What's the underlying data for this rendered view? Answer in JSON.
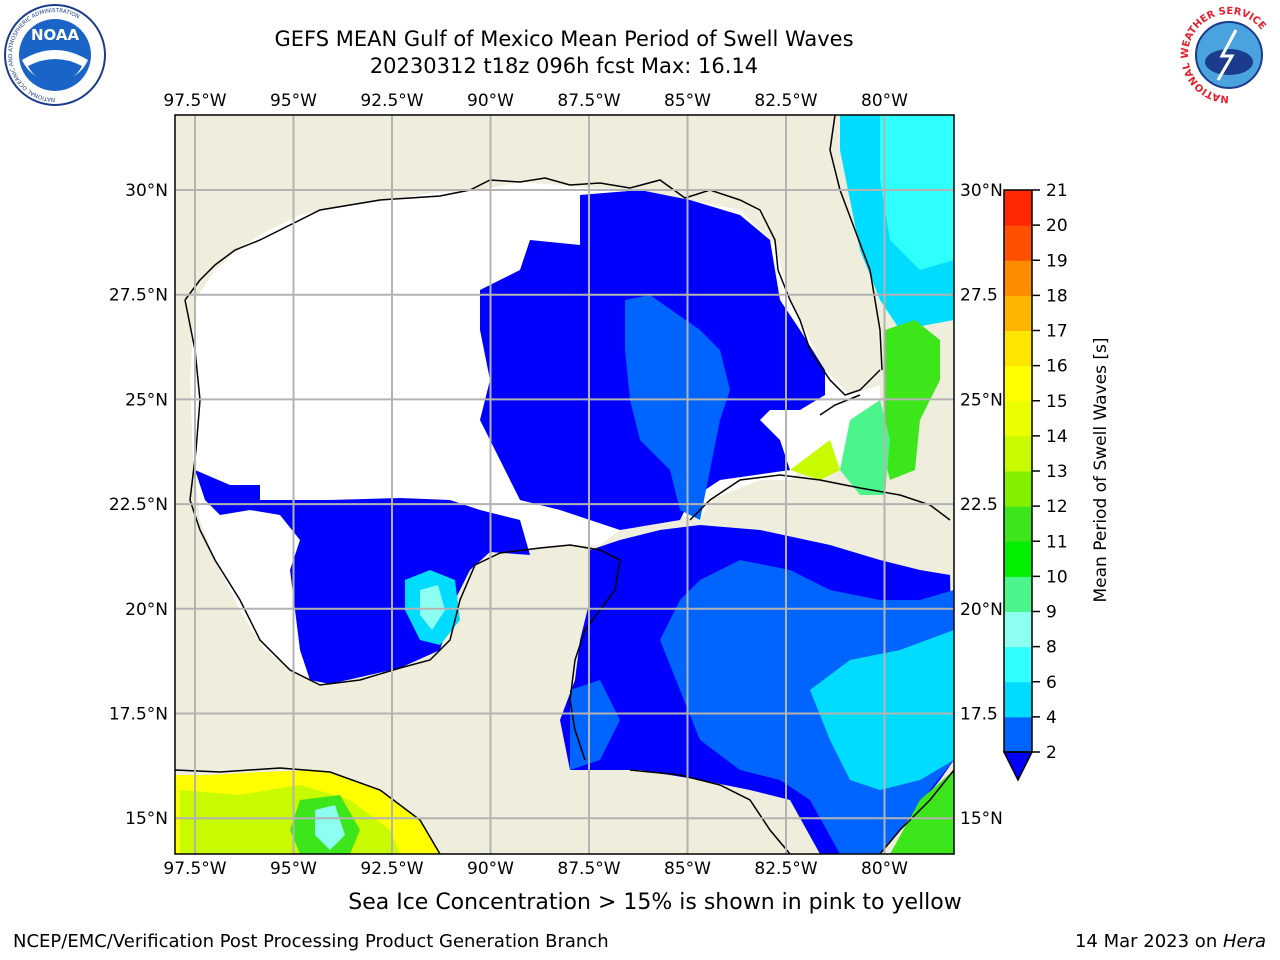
{
  "header": {
    "title_line1": "GEFS MEAN Gulf of Mexico Mean Period of Swell Waves",
    "title_line2": "20230312 t18z 096h fcst   Max: 16.14"
  },
  "map": {
    "lon_labels": [
      "97.5°W",
      "95°W",
      "92.5°W",
      "90°W",
      "87.5°W",
      "85°W",
      "82.5°W",
      "80°W"
    ],
    "lat_labels_left": [
      "30°N",
      "27.5°N",
      "25°N",
      "22.5°N",
      "20°N",
      "17.5°N",
      "15°N"
    ],
    "lat_labels_right": [
      "30°N",
      "27.5",
      "25°N",
      "22.5",
      "20°N",
      "17.5",
      "15°N"
    ],
    "land_color": "#efeddb",
    "gridline_color": "#b3b3b3"
  },
  "colorbar": {
    "label": "Mean Period of Swell Waves [s]",
    "ticks": [
      "2",
      "4",
      "6",
      "8",
      "9",
      "10",
      "11",
      "12",
      "13",
      "14",
      "15",
      "16",
      "17",
      "18",
      "19",
      "20",
      "21"
    ],
    "colors": [
      "#0064ff",
      "#00dcff",
      "#2effff",
      "#8cfff0",
      "#4bf58c",
      "#00f000",
      "#3ce61a",
      "#82f000",
      "#c8fa00",
      "#ebff00",
      "#ffff00",
      "#ffe600",
      "#ffb400",
      "#ff8c00",
      "#ff5000",
      "#ff2800",
      "#ff0000"
    ],
    "under_color": "#0000ff"
  },
  "annotation": "Sea Ice Concentration > 15% is shown in pink to yellow",
  "footer": {
    "credit": "NCEP/EMC/Verification Post Processing Product Generation Branch",
    "date": "14 Mar 2023 on ",
    "machine": "Hera"
  },
  "logos": {
    "noaa_text": "NOAA",
    "noaa_ring": "NATIONAL OCEANIC AND ATMOSPHERIC ADMINISTRATION",
    "nws_ring": "NATIONAL WEATHER SERVICE"
  }
}
